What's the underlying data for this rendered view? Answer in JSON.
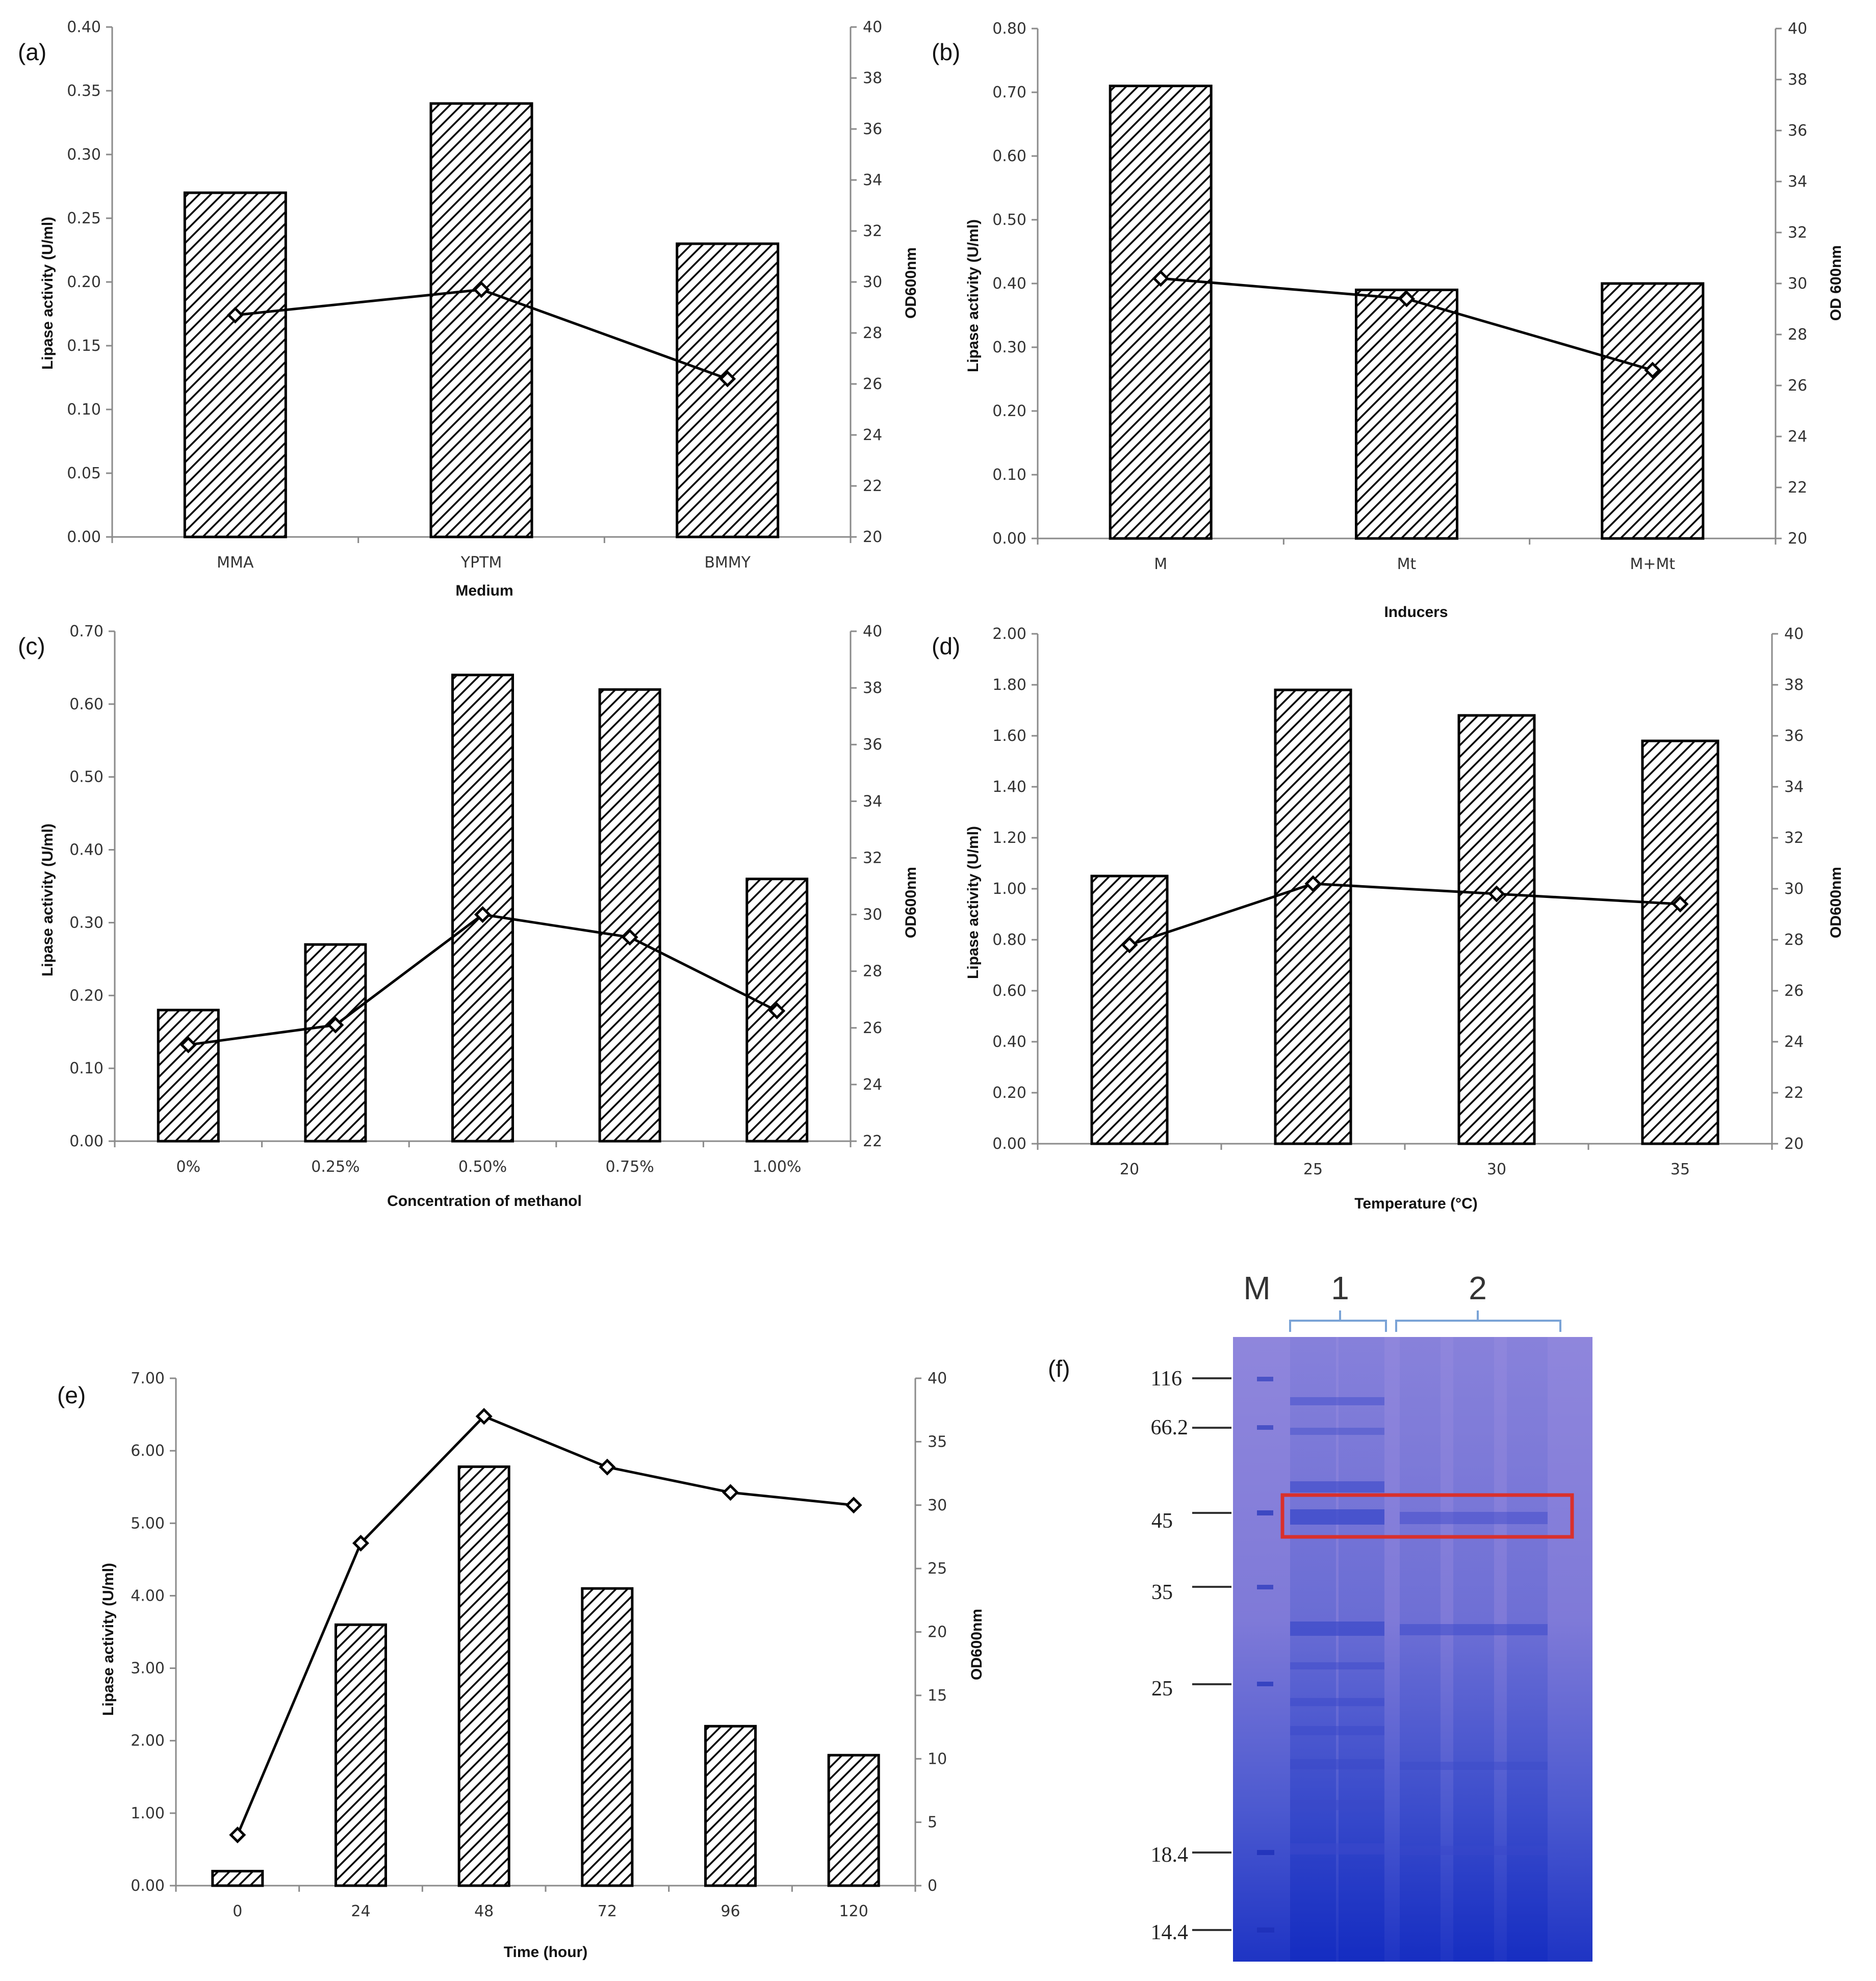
{
  "chart_data": [
    {
      "panel": "(a)",
      "type": "bar",
      "xlabel": "Medium",
      "ylabel": "Lipase activity (U/ml)",
      "y2label": "OD600nm",
      "categories": [
        "MMA",
        "YPTM",
        "BMMY"
      ],
      "series": [
        {
          "name": "Lipase activity (U/ml)",
          "type": "bar",
          "axis": "left",
          "values": [
            0.27,
            0.34,
            0.23
          ]
        },
        {
          "name": "OD600nm",
          "type": "line",
          "axis": "right",
          "values": [
            28.7,
            29.7,
            26.2
          ]
        }
      ],
      "ylim": [
        0,
        0.4
      ],
      "yticks": [
        "0.00",
        "0.05",
        "0.10",
        "0.15",
        "0.20",
        "0.25",
        "0.30",
        "0.35",
        "0.40"
      ],
      "y2lim": [
        20,
        40
      ],
      "y2ticks": [
        "20",
        "22",
        "24",
        "26",
        "28",
        "30",
        "32",
        "34",
        "36",
        "38",
        "40"
      ]
    },
    {
      "panel": "(b)",
      "type": "bar",
      "xlabel": "Inducers",
      "ylabel": "Lipase activity (U/ml)",
      "y2label": "OD 600nm",
      "categories": [
        "M",
        "Mt",
        "M+Mt"
      ],
      "series": [
        {
          "name": "Lipase activity (U/ml)",
          "type": "bar",
          "axis": "left",
          "values": [
            0.71,
            0.39,
            0.4
          ]
        },
        {
          "name": "OD 600nm",
          "type": "line",
          "axis": "right",
          "values": [
            30.2,
            29.4,
            26.6
          ]
        }
      ],
      "ylim": [
        0,
        0.8
      ],
      "yticks": [
        "0.00",
        "0.10",
        "0.20",
        "0.30",
        "0.40",
        "0.50",
        "0.60",
        "0.70",
        "0.80"
      ],
      "y2lim": [
        20,
        40
      ],
      "y2ticks": [
        "20",
        "22",
        "24",
        "26",
        "28",
        "30",
        "32",
        "34",
        "36",
        "38",
        "40"
      ]
    },
    {
      "panel": "(c)",
      "type": "bar",
      "xlabel": "Concentration of methanol",
      "ylabel": "Lipase activity (U/ml)",
      "y2label": "OD600nm",
      "categories": [
        "0%",
        "0.25%",
        "0.50%",
        "0.75%",
        "1.00%"
      ],
      "series": [
        {
          "name": "Lipase activity (U/ml)",
          "type": "bar",
          "axis": "left",
          "values": [
            0.18,
            0.27,
            0.64,
            0.62,
            0.36
          ]
        },
        {
          "name": "OD600nm",
          "type": "line",
          "axis": "right",
          "values": [
            25.4,
            26.1,
            30.0,
            29.2,
            26.6
          ]
        }
      ],
      "ylim": [
        0,
        0.7
      ],
      "yticks": [
        "0.00",
        "0.10",
        "0.20",
        "0.30",
        "0.40",
        "0.50",
        "0.60",
        "0.70"
      ],
      "y2lim": [
        22,
        40
      ],
      "y2ticks": [
        "22",
        "24",
        "26",
        "28",
        "30",
        "32",
        "34",
        "36",
        "38",
        "40"
      ]
    },
    {
      "panel": "(d)",
      "type": "bar",
      "xlabel": "Temperature (°C)",
      "ylabel": "Lipase activity (U/ml)",
      "y2label": "OD600nm",
      "categories": [
        "20",
        "25",
        "30",
        "35"
      ],
      "series": [
        {
          "name": "Lipase activity (U/ml)",
          "type": "bar",
          "axis": "left",
          "values": [
            1.05,
            1.78,
            1.68,
            1.58
          ]
        },
        {
          "name": "OD600nm",
          "type": "line",
          "axis": "right",
          "values": [
            27.8,
            30.2,
            29.8,
            29.4
          ]
        }
      ],
      "ylim": [
        0,
        2
      ],
      "yticks": [
        "0.00",
        "0.20",
        "0.40",
        "0.60",
        "0.80",
        "1.00",
        "1.20",
        "1.40",
        "1.60",
        "1.80",
        "2.00"
      ],
      "y2lim": [
        20,
        40
      ],
      "y2ticks": [
        "20",
        "22",
        "24",
        "26",
        "28",
        "30",
        "32",
        "34",
        "36",
        "38",
        "40"
      ]
    },
    {
      "panel": "(e)",
      "type": "bar",
      "xlabel": "Time (hour)",
      "ylabel": "Lipase activity (U/ml)",
      "y2label": "OD600nm",
      "categories": [
        "0",
        "24",
        "48",
        "72",
        "96",
        "120"
      ],
      "series": [
        {
          "name": "Lipase activity (U/ml)",
          "type": "bar",
          "axis": "left",
          "values": [
            0.2,
            3.6,
            5.78,
            4.1,
            2.2,
            1.8
          ]
        },
        {
          "name": "OD600nm",
          "type": "line",
          "axis": "right",
          "values": [
            4,
            27,
            37,
            33,
            31,
            30
          ]
        }
      ],
      "ylim": [
        0,
        7
      ],
      "yticks": [
        "0.00",
        "1.00",
        "2.00",
        "3.00",
        "4.00",
        "5.00",
        "6.00",
        "7.00"
      ],
      "y2lim": [
        0,
        40
      ],
      "y2ticks": [
        "0",
        "5",
        "10",
        "15",
        "20",
        "25",
        "30",
        "35",
        "40"
      ]
    }
  ],
  "gel": {
    "panel": "(f)",
    "lane_labels": [
      "M",
      "1",
      "2"
    ],
    "marker_labels": [
      "116",
      "66.2",
      "45",
      "35",
      "25",
      "18.4",
      "14.4"
    ],
    "colors": {
      "gel_light": "#8e86dd",
      "gel_dark": "#1e36c6",
      "box": "#d9302c",
      "bracket": "#7aa3d6"
    }
  },
  "colors": {
    "bar_fill": "#ffffff",
    "bar_hatch": "#000000",
    "line": "#000000",
    "axis": "#8a8a8a"
  }
}
